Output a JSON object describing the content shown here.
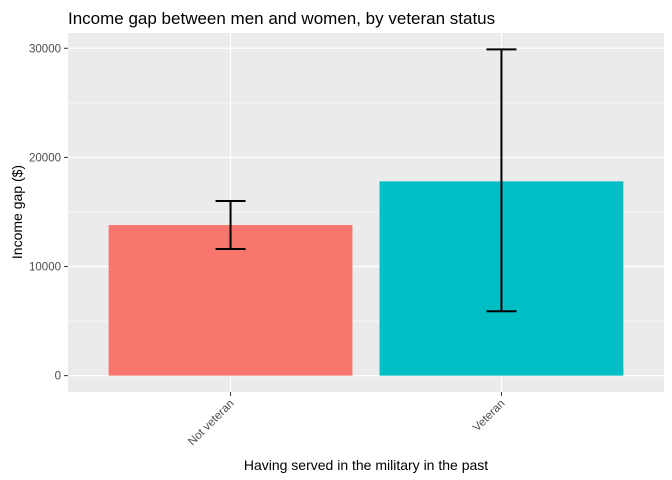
{
  "chart_data": {
    "type": "bar",
    "title": "Income gap between men and women, by veteran status",
    "xlabel": "Having served in the military in the past",
    "ylabel": "Income gap ($)",
    "categories": [
      "Not veteran",
      "Veteran"
    ],
    "values": [
      13800,
      17800
    ],
    "error_lower": [
      11600,
      5900
    ],
    "error_upper": [
      16000,
      29900
    ],
    "colors": [
      "#F8766D",
      "#00BFC4"
    ],
    "yticks": [
      0,
      10000,
      20000,
      30000
    ],
    "ylim": [
      -1500,
      31400
    ],
    "grid": true,
    "legend": "none",
    "background": "#EBEBEB"
  }
}
